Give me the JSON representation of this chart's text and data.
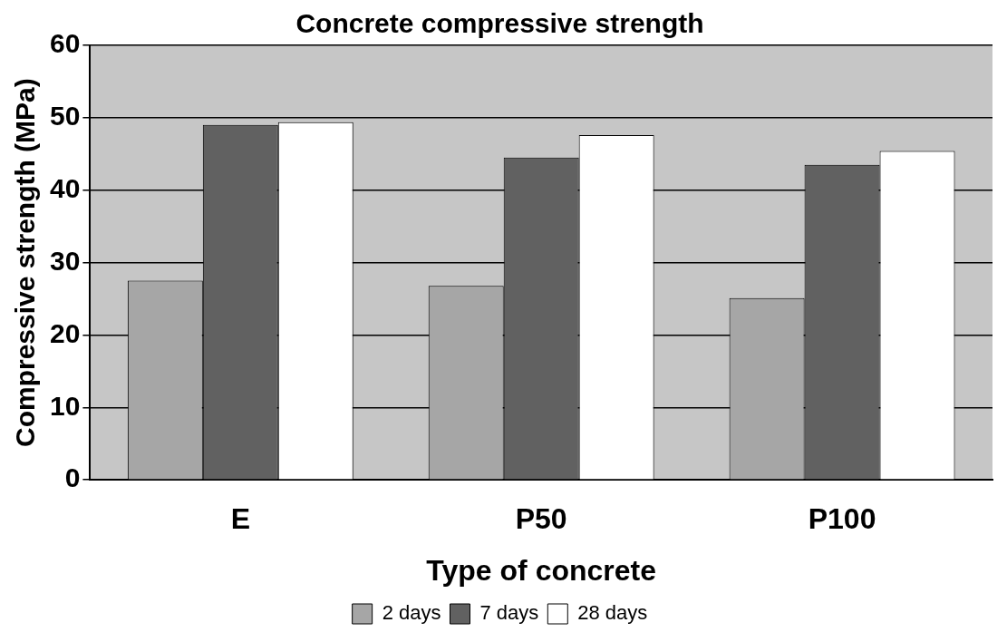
{
  "chart_data": {
    "type": "bar",
    "title": "Concrete compressive strength",
    "xlabel": "Type of concrete",
    "ylabel": "Compressive strength (MPa)",
    "categories": [
      "E",
      "P50",
      "P100"
    ],
    "series": [
      {
        "name": "2 days",
        "color": "#a6a6a6",
        "values": [
          27.5,
          26.8,
          25.1
        ]
      },
      {
        "name": "7 days",
        "color": "#616161",
        "values": [
          49,
          44.5,
          43.5
        ]
      },
      {
        "name": "28 days",
        "color": "#ffffff",
        "values": [
          49.4,
          47.6,
          45.4
        ]
      }
    ],
    "ylim": [
      0,
      60
    ],
    "yticks": [
      0,
      10,
      20,
      30,
      40,
      50,
      60
    ],
    "grid": "y",
    "legend": "bottom"
  }
}
